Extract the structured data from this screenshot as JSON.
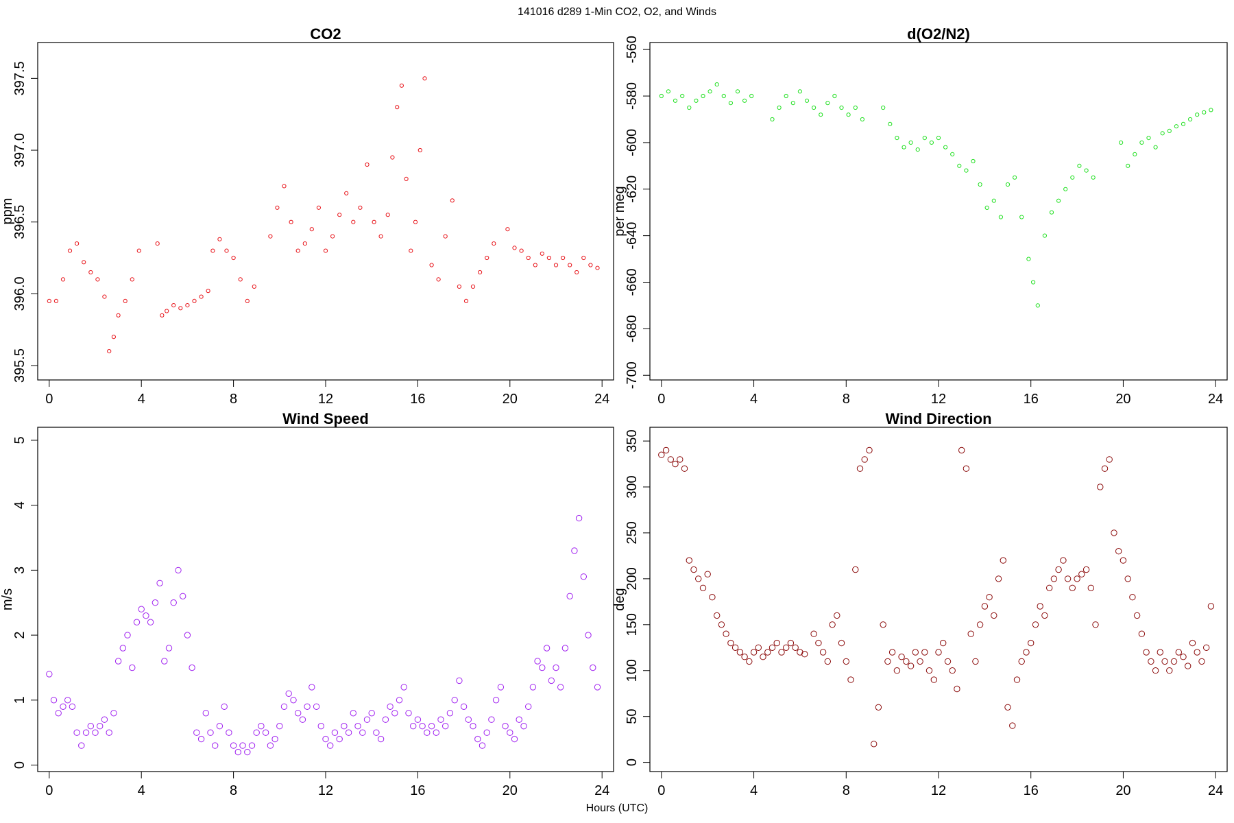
{
  "figure": {
    "title": "141016   d289   1-Min CO2, O2, and Winds",
    "xlabel": "Hours (UTC)"
  },
  "chart_data": [
    {
      "id": "co2",
      "type": "scatter",
      "title": "CO2",
      "ylabel": "ppm",
      "xlabel": "",
      "xlim": [
        -0.5,
        24.5
      ],
      "ylim": [
        395.4,
        397.75
      ],
      "xticks": [
        0,
        4,
        8,
        12,
        16,
        20,
        24
      ],
      "yticks": [
        395.5,
        396.0,
        396.5,
        397.0,
        397.5
      ],
      "ytick_labels": [
        "395.5",
        "396.0",
        "396.5",
        "397.0",
        "397.5"
      ],
      "color": "#e8161c",
      "marker_size": "small",
      "series": [
        {
          "x": [
            0.0,
            0.3,
            0.6,
            0.9,
            1.2,
            1.5,
            1.8,
            2.1,
            2.4,
            2.6,
            2.8,
            3.0,
            3.3,
            3.6,
            3.9,
            4.7,
            4.9,
            5.1,
            5.4,
            5.7,
            6.0,
            6.3,
            6.6,
            6.9,
            7.1,
            7.4,
            7.7,
            8.0,
            8.3,
            8.6,
            8.9,
            9.6,
            9.9,
            10.2,
            10.5,
            10.8,
            11.1,
            11.4,
            11.7,
            12.0,
            12.3,
            12.6,
            12.9,
            13.2,
            13.5,
            13.8,
            14.1,
            14.4,
            14.7,
            14.9,
            15.1,
            15.3,
            15.5,
            15.7,
            15.9,
            16.1,
            16.3,
            16.6,
            16.9,
            17.2,
            17.5,
            17.8,
            18.1,
            18.4,
            18.7,
            19.0,
            19.3,
            19.9,
            20.2,
            20.5,
            20.8,
            21.1,
            21.4,
            21.7,
            22.0,
            22.3,
            22.6,
            22.9,
            23.2,
            23.5,
            23.8
          ],
          "y": [
            395.95,
            395.95,
            396.1,
            396.3,
            396.35,
            396.22,
            396.15,
            396.1,
            395.98,
            395.6,
            395.7,
            395.85,
            395.95,
            396.1,
            396.3,
            396.35,
            395.85,
            395.88,
            395.92,
            395.9,
            395.92,
            395.95,
            395.98,
            396.02,
            396.3,
            396.38,
            396.3,
            396.25,
            396.1,
            395.95,
            396.05,
            396.4,
            396.6,
            396.75,
            396.5,
            396.3,
            396.35,
            396.45,
            396.6,
            396.3,
            396.4,
            396.55,
            396.7,
            396.5,
            396.6,
            396.9,
            396.5,
            396.4,
            396.55,
            396.95,
            397.3,
            397.45,
            396.8,
            396.3,
            396.5,
            397.0,
            397.5,
            396.2,
            396.1,
            396.4,
            396.65,
            396.05,
            395.95,
            396.05,
            396.15,
            396.25,
            396.35,
            396.45,
            396.32,
            396.3,
            396.25,
            396.2,
            396.28,
            396.25,
            396.2,
            396.25,
            396.2,
            396.15,
            396.25,
            396.2,
            396.18
          ]
        }
      ]
    },
    {
      "id": "o2",
      "type": "scatter",
      "title": "d(O2/N2)",
      "ylabel": "per meg",
      "xlabel": "",
      "xlim": [
        -0.5,
        24.5
      ],
      "ylim": [
        -702,
        -557
      ],
      "xticks": [
        0,
        4,
        8,
        12,
        16,
        20,
        24
      ],
      "yticks": [
        -700,
        -680,
        -660,
        -640,
        -620,
        -600,
        -580,
        -560
      ],
      "ytick_labels": [
        "-700",
        "-680",
        "-660",
        "-640",
        "-620",
        "-600",
        "-580",
        "-560"
      ],
      "color": "#22e022",
      "marker_size": "small",
      "series": [
        {
          "x": [
            0.0,
            0.3,
            0.6,
            0.9,
            1.2,
            1.5,
            1.8,
            2.1,
            2.4,
            2.7,
            3.0,
            3.3,
            3.6,
            3.9,
            4.8,
            5.1,
            5.4,
            5.7,
            6.0,
            6.3,
            6.6,
            6.9,
            7.2,
            7.5,
            7.8,
            8.1,
            8.4,
            8.7,
            9.6,
            9.9,
            10.2,
            10.5,
            10.8,
            11.1,
            11.4,
            11.7,
            12.0,
            12.3,
            12.6,
            12.9,
            13.2,
            13.5,
            13.8,
            14.1,
            14.4,
            14.7,
            15.0,
            15.3,
            15.6,
            15.9,
            16.1,
            16.3,
            16.6,
            16.9,
            17.2,
            17.5,
            17.8,
            18.1,
            18.4,
            18.7,
            19.9,
            20.2,
            20.5,
            20.8,
            21.1,
            21.4,
            21.7,
            22.0,
            22.3,
            22.6,
            22.9,
            23.2,
            23.5,
            23.8
          ],
          "y": [
            -580,
            -578,
            -582,
            -580,
            -585,
            -582,
            -580,
            -578,
            -575,
            -580,
            -583,
            -578,
            -582,
            -580,
            -590,
            -585,
            -580,
            -583,
            -578,
            -582,
            -585,
            -588,
            -583,
            -580,
            -585,
            -588,
            -585,
            -590,
            -585,
            -592,
            -598,
            -602,
            -600,
            -603,
            -598,
            -600,
            -598,
            -602,
            -605,
            -610,
            -612,
            -608,
            -618,
            -628,
            -625,
            -632,
            -618,
            -615,
            -632,
            -650,
            -660,
            -670,
            -640,
            -630,
            -625,
            -620,
            -615,
            -610,
            -612,
            -615,
            -600,
            -610,
            -605,
            -600,
            -598,
            -602,
            -596,
            -595,
            -593,
            -592,
            -590,
            -588,
            -587,
            -586
          ]
        }
      ]
    },
    {
      "id": "wspd",
      "type": "scatter",
      "title": "Wind Speed",
      "ylabel": "m/s",
      "xlabel": "",
      "xlim": [
        -0.5,
        24.5
      ],
      "ylim": [
        -0.1,
        5.2
      ],
      "xticks": [
        0,
        4,
        8,
        12,
        16,
        20,
        24
      ],
      "yticks": [
        0,
        1,
        2,
        3,
        4,
        5
      ],
      "ytick_labels": [
        "0",
        "1",
        "2",
        "3",
        "4",
        "5"
      ],
      "color": "#a020f0",
      "marker_size": "large",
      "series": [
        {
          "x": [
            0.0,
            0.2,
            0.4,
            0.6,
            0.8,
            1.0,
            1.2,
            1.4,
            1.6,
            1.8,
            2.0,
            2.2,
            2.4,
            2.6,
            2.8,
            3.0,
            3.2,
            3.4,
            3.6,
            3.8,
            4.0,
            4.2,
            4.4,
            4.6,
            4.8,
            5.0,
            5.2,
            5.4,
            5.6,
            5.8,
            6.0,
            6.2,
            6.4,
            6.6,
            6.8,
            7.0,
            7.2,
            7.4,
            7.6,
            7.8,
            8.0,
            8.2,
            8.4,
            8.6,
            8.8,
            9.0,
            9.2,
            9.4,
            9.6,
            9.8,
            10.0,
            10.2,
            10.4,
            10.6,
            10.8,
            11.0,
            11.2,
            11.4,
            11.6,
            11.8,
            12.0,
            12.2,
            12.4,
            12.6,
            12.8,
            13.0,
            13.2,
            13.4,
            13.6,
            13.8,
            14.0,
            14.2,
            14.4,
            14.6,
            14.8,
            15.0,
            15.2,
            15.4,
            15.6,
            15.8,
            16.0,
            16.2,
            16.4,
            16.6,
            16.8,
            17.0,
            17.2,
            17.4,
            17.6,
            17.8,
            18.0,
            18.2,
            18.4,
            18.6,
            18.8,
            19.0,
            19.2,
            19.4,
            19.6,
            19.8,
            20.0,
            20.2,
            20.4,
            20.6,
            20.8,
            21.0,
            21.2,
            21.4,
            21.6,
            21.8,
            22.0,
            22.2,
            22.4,
            22.6,
            22.8,
            23.0,
            23.2,
            23.4,
            23.6,
            23.8
          ],
          "y": [
            1.4,
            1.0,
            0.8,
            0.9,
            1.0,
            0.9,
            0.5,
            0.3,
            0.5,
            0.6,
            0.5,
            0.6,
            0.7,
            0.5,
            0.8,
            1.6,
            1.8,
            2.0,
            1.5,
            2.2,
            2.4,
            2.3,
            2.2,
            2.5,
            2.8,
            1.6,
            1.8,
            2.5,
            3.0,
            2.6,
            2.0,
            1.5,
            0.5,
            0.4,
            0.8,
            0.5,
            0.3,
            0.6,
            0.9,
            0.5,
            0.3,
            0.2,
            0.3,
            0.2,
            0.3,
            0.5,
            0.6,
            0.5,
            0.3,
            0.4,
            0.6,
            0.9,
            1.1,
            1.0,
            0.8,
            0.7,
            0.9,
            1.2,
            0.9,
            0.6,
            0.4,
            0.3,
            0.5,
            0.4,
            0.6,
            0.5,
            0.8,
            0.6,
            0.5,
            0.7,
            0.8,
            0.5,
            0.4,
            0.7,
            0.9,
            0.8,
            1.0,
            1.2,
            0.8,
            0.6,
            0.7,
            0.6,
            0.5,
            0.6,
            0.5,
            0.7,
            0.6,
            0.8,
            1.0,
            1.3,
            0.9,
            0.7,
            0.6,
            0.4,
            0.3,
            0.5,
            0.7,
            1.0,
            1.2,
            0.6,
            0.5,
            0.4,
            0.7,
            0.6,
            0.9,
            1.2,
            1.6,
            1.5,
            1.8,
            1.3,
            1.5,
            1.2,
            1.8,
            2.6,
            3.3,
            3.8,
            2.9,
            2.0,
            1.5,
            1.2
          ]
        }
      ]
    },
    {
      "id": "wdir",
      "type": "scatter",
      "title": "Wind Direction",
      "ylabel": "deg",
      "xlabel": "",
      "xlim": [
        -0.5,
        24.5
      ],
      "ylim": [
        -10,
        365
      ],
      "xticks": [
        0,
        4,
        8,
        12,
        16,
        20,
        24
      ],
      "yticks": [
        0,
        50,
        100,
        150,
        200,
        250,
        300,
        350
      ],
      "ytick_labels": [
        "0",
        "50",
        "100",
        "150",
        "200",
        "250",
        "300",
        "350"
      ],
      "color": "#8b0a0a",
      "marker_size": "large",
      "series": [
        {
          "x": [
            0.0,
            0.2,
            0.4,
            0.6,
            0.8,
            1.0,
            1.2,
            1.4,
            1.6,
            1.8,
            2.0,
            2.2,
            2.4,
            2.6,
            2.8,
            3.0,
            3.2,
            3.4,
            3.6,
            3.8,
            4.0,
            4.2,
            4.4,
            4.6,
            4.8,
            5.0,
            5.2,
            5.4,
            5.6,
            5.8,
            6.0,
            6.2,
            6.6,
            6.8,
            7.0,
            7.2,
            7.4,
            7.6,
            7.8,
            8.0,
            8.2,
            8.4,
            8.6,
            8.8,
            9.0,
            9.2,
            9.4,
            9.6,
            9.8,
            10.0,
            10.2,
            10.4,
            10.6,
            10.8,
            11.0,
            11.2,
            11.4,
            11.6,
            11.8,
            12.0,
            12.2,
            12.4,
            12.6,
            12.8,
            13.0,
            13.2,
            13.4,
            13.6,
            13.8,
            14.0,
            14.2,
            14.4,
            14.6,
            14.8,
            15.0,
            15.2,
            15.4,
            15.6,
            15.8,
            16.0,
            16.2,
            16.4,
            16.6,
            16.8,
            17.0,
            17.2,
            17.4,
            17.6,
            17.8,
            18.0,
            18.2,
            18.4,
            18.6,
            18.8,
            19.0,
            19.2,
            19.4,
            19.6,
            19.8,
            20.0,
            20.2,
            20.4,
            20.6,
            20.8,
            21.0,
            21.2,
            21.4,
            21.6,
            21.8,
            22.0,
            22.2,
            22.4,
            22.6,
            22.8,
            23.0,
            23.2,
            23.4,
            23.6,
            23.8
          ],
          "y": [
            335,
            340,
            330,
            325,
            330,
            320,
            220,
            210,
            200,
            190,
            205,
            180,
            160,
            150,
            140,
            130,
            125,
            120,
            115,
            110,
            120,
            125,
            115,
            120,
            125,
            130,
            120,
            125,
            130,
            125,
            120,
            118,
            140,
            130,
            120,
            110,
            150,
            160,
            130,
            110,
            90,
            210,
            320,
            330,
            340,
            20,
            60,
            150,
            110,
            120,
            100,
            115,
            110,
            105,
            120,
            110,
            120,
            100,
            90,
            120,
            130,
            110,
            100,
            80,
            340,
            320,
            140,
            110,
            150,
            170,
            180,
            160,
            200,
            220,
            60,
            40,
            90,
            110,
            120,
            130,
            150,
            170,
            160,
            190,
            200,
            210,
            220,
            200,
            190,
            200,
            205,
            210,
            190,
            150,
            300,
            320,
            330,
            250,
            230,
            220,
            200,
            180,
            160,
            140,
            120,
            110,
            100,
            120,
            110,
            100,
            110,
            120,
            115,
            105,
            130,
            120,
            110,
            125,
            170
          ]
        }
      ]
    }
  ]
}
